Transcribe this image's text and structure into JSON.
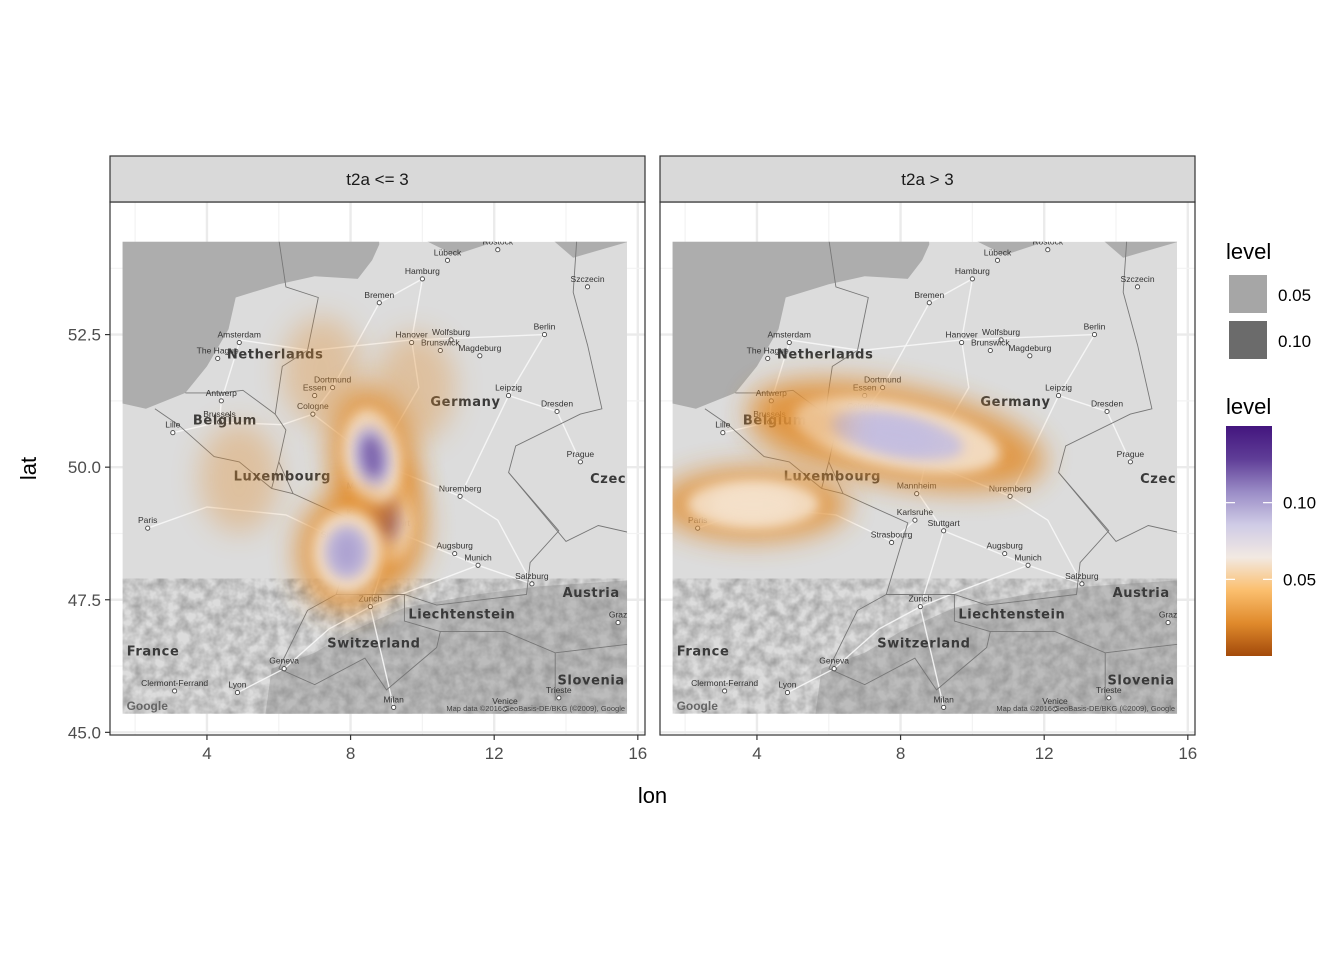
{
  "chart_data": {
    "type": "map-density",
    "xlabel": "lon",
    "ylabel": "lat",
    "x_ticks": [
      4,
      8,
      12,
      16
    ],
    "y_ticks": [
      45.0,
      47.5,
      50.0,
      52.5
    ],
    "y_tick_labels": [
      "45.0",
      "47.5",
      "50.0",
      "52.5"
    ],
    "xlim": [
      1.3,
      16.2
    ],
    "ylim": [
      44.95,
      55.0
    ],
    "basemap_extent": {
      "lon": [
        1.65,
        15.7
      ],
      "lat": [
        45.35,
        54.25
      ]
    },
    "grid": true,
    "legend_position": "right",
    "panels": [
      {
        "label": "t2a <= 3",
        "density_peaks": [
          {
            "lon": 8.9,
            "lat": 49.1,
            "level": 0.15
          },
          {
            "lon": 8.6,
            "lat": 50.2,
            "level": 0.12
          },
          {
            "lon": 7.9,
            "lat": 48.4,
            "level": 0.1
          },
          {
            "lon": 4.9,
            "lat": 49.8,
            "level": 0.02
          },
          {
            "lon": 7.2,
            "lat": 51.8,
            "level": 0.02
          },
          {
            "lon": 9.8,
            "lat": 51.5,
            "level": 0.01
          }
        ]
      },
      {
        "label": "t2a > 3",
        "density_peaks": [
          {
            "lon": 7.9,
            "lat": 50.6,
            "level": 0.09
          },
          {
            "lon": 3.9,
            "lat": 49.3,
            "level": 0.06
          },
          {
            "lon": 5.2,
            "lat": 50.8,
            "level": 0.02
          }
        ]
      }
    ],
    "legends": [
      {
        "title": "level",
        "kind": "alpha",
        "entries": [
          {
            "label": "0.05",
            "color": "#a6a6a6"
          },
          {
            "label": "0.10",
            "color": "#6b6b6b"
          }
        ]
      },
      {
        "title": "level",
        "kind": "colorbar",
        "breaks": [
          0.05,
          0.1
        ],
        "break_labels": [
          "0.05",
          "0.10"
        ],
        "range": [
          0.0,
          0.15
        ],
        "colors": [
          "#a34a0b",
          "#e08a2c",
          "#fbbf6e",
          "#f2e9e2",
          "#cfcbe6",
          "#9a8cc6",
          "#5f3d97",
          "#43157e"
        ]
      }
    ]
  },
  "map": {
    "attribution": "Map data ©2016 GeoBasis-DE/BKG (©2009), Google",
    "logo": "Google",
    "countries": [
      {
        "name": "Netherlands",
        "lon": 5.9,
        "lat": 52.05
      },
      {
        "name": "Belgium",
        "lon": 4.5,
        "lat": 50.8
      },
      {
        "name": "Luxembourg",
        "lon": 6.1,
        "lat": 49.75
      },
      {
        "name": "Germany",
        "lon": 11.2,
        "lat": 51.15
      },
      {
        "name": "Czech Rep",
        "lon": 15.8,
        "lat": 49.7
      },
      {
        "name": "France",
        "lon": 2.5,
        "lat": 46.45
      },
      {
        "name": "Switzerland",
        "lon": 8.65,
        "lat": 46.6
      },
      {
        "name": "Liechtenstein",
        "lon": 11.1,
        "lat": 47.15
      },
      {
        "name": "Austria",
        "lon": 14.7,
        "lat": 47.55
      },
      {
        "name": "Slovenia",
        "lon": 14.7,
        "lat": 45.9
      }
    ],
    "cities": [
      {
        "name": "Rostock",
        "lon": 12.1,
        "lat": 54.1,
        "dot": true
      },
      {
        "name": "Lübeck",
        "lon": 10.7,
        "lat": 53.9,
        "dot": true
      },
      {
        "name": "Hamburg",
        "lon": 10.0,
        "lat": 53.55,
        "dot": true
      },
      {
        "name": "Szczecin",
        "lon": 14.6,
        "lat": 53.4,
        "dot": true
      },
      {
        "name": "Bremen",
        "lon": 8.8,
        "lat": 53.1,
        "dot": true
      },
      {
        "name": "Amsterdam",
        "lon": 4.9,
        "lat": 52.35,
        "dot": true
      },
      {
        "name": "Hanover",
        "lon": 9.7,
        "lat": 52.35,
        "dot": true
      },
      {
        "name": "Berlin",
        "lon": 13.4,
        "lat": 52.5,
        "dot": true
      },
      {
        "name": "The Hague",
        "lon": 4.3,
        "lat": 52.05,
        "dot": true
      },
      {
        "name": "Wolfsburg",
        "lon": 10.8,
        "lat": 52.4,
        "dot": true
      },
      {
        "name": "Brunswick",
        "lon": 10.5,
        "lat": 52.2,
        "dot": true
      },
      {
        "name": "Magdeburg",
        "lon": 11.6,
        "lat": 52.1,
        "dot": true
      },
      {
        "name": "Dortmund",
        "lon": 7.5,
        "lat": 51.5,
        "dot": true
      },
      {
        "name": "Antwerp",
        "lon": 4.4,
        "lat": 51.25,
        "dot": true
      },
      {
        "name": "Essen",
        "lon": 7.0,
        "lat": 51.35,
        "dot": true
      },
      {
        "name": "Leipzig",
        "lon": 12.4,
        "lat": 51.35,
        "dot": true
      },
      {
        "name": "Dresden",
        "lon": 13.75,
        "lat": 51.05,
        "dot": true
      },
      {
        "name": "Cologne",
        "lon": 6.95,
        "lat": 51.0,
        "dot": true
      },
      {
        "name": "Brussels",
        "lon": 4.35,
        "lat": 50.85,
        "dot": true
      },
      {
        "name": "Lille",
        "lon": 3.05,
        "lat": 50.65,
        "dot": true
      },
      {
        "name": "Prague",
        "lon": 14.4,
        "lat": 50.1,
        "dot": true
      },
      {
        "name": "Nuremberg",
        "lon": 11.05,
        "lat": 49.45,
        "dot": true
      },
      {
        "name": "Mannheim",
        "lon": 8.45,
        "lat": 49.5,
        "dot": true
      },
      {
        "name": "Karlsruhe",
        "lon": 8.4,
        "lat": 49.0,
        "dot": true
      },
      {
        "name": "Paris",
        "lon": 2.35,
        "lat": 48.85,
        "dot": true
      },
      {
        "name": "Stuttgart",
        "lon": 9.2,
        "lat": 48.8,
        "dot": true
      },
      {
        "name": "Strasbourg",
        "lon": 7.75,
        "lat": 48.58,
        "dot": true
      },
      {
        "name": "Augsburg",
        "lon": 10.9,
        "lat": 48.37,
        "dot": true
      },
      {
        "name": "Munich",
        "lon": 11.55,
        "lat": 48.15,
        "dot": true
      },
      {
        "name": "Salzburg",
        "lon": 13.05,
        "lat": 47.8,
        "dot": true
      },
      {
        "name": "Zurich",
        "lon": 8.55,
        "lat": 47.37,
        "dot": true
      },
      {
        "name": "Graz",
        "lon": 15.45,
        "lat": 47.07,
        "dot": true
      },
      {
        "name": "Geneva",
        "lon": 6.15,
        "lat": 46.2,
        "dot": true
      },
      {
        "name": "Clermont-Ferrand",
        "lon": 3.1,
        "lat": 45.78,
        "dot": true
      },
      {
        "name": "Lyon",
        "lon": 4.85,
        "lat": 45.75,
        "dot": true
      },
      {
        "name": "Trieste",
        "lon": 13.8,
        "lat": 45.65,
        "dot": true
      },
      {
        "name": "Milan",
        "lon": 9.2,
        "lat": 45.47,
        "dot": true
      },
      {
        "name": "Venice",
        "lon": 12.3,
        "lat": 45.44,
        "dot": true
      }
    ]
  }
}
